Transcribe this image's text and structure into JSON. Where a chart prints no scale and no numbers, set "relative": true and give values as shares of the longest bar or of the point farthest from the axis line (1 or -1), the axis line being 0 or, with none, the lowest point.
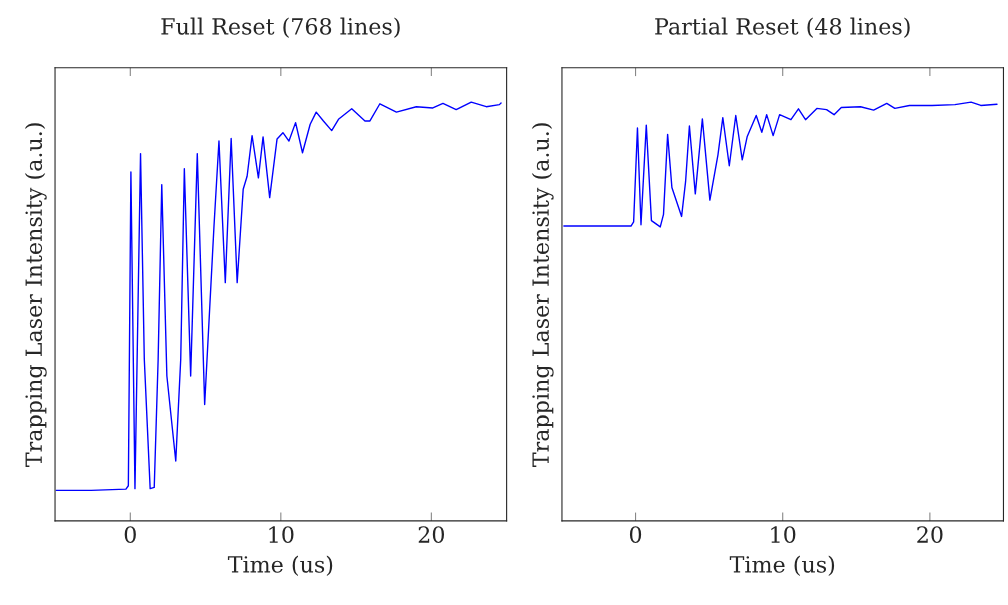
{
  "chart_data": [
    {
      "type": "line",
      "title": "Full Reset (768 lines)",
      "xlabel": "Time (us)",
      "ylabel": "Trapping Laser Intensity (a.u.)",
      "relative": true,
      "tick_labels": "x",
      "xlim": [
        -5,
        25
      ],
      "xticks": [
        0,
        10,
        20
      ],
      "x": [
        -4.92,
        -2.6,
        -0.29,
        -0.13,
        0.04,
        0.31,
        0.68,
        0.93,
        1.32,
        1.59,
        1.85,
        2.09,
        2.43,
        3.02,
        3.35,
        3.59,
        4.01,
        4.45,
        4.94,
        5.56,
        5.89,
        6.31,
        6.7,
        7.1,
        7.5,
        7.76,
        8.09,
        8.51,
        8.82,
        9.26,
        9.75,
        10.14,
        10.54,
        10.98,
        11.44,
        11.95,
        12.35,
        12.83,
        13.38,
        13.83,
        14.71,
        15.59,
        15.92,
        16.58,
        17.68,
        19.0,
        20.1,
        20.77,
        21.65,
        22.65,
        23.65,
        24.52,
        24.63
      ],
      "series": [
        {
          "color": "#0000ff",
          "values": [
            0.073,
            0.073,
            0.076,
            0.084,
            0.833,
            0.077,
            0.877,
            0.386,
            0.077,
            0.08,
            0.386,
            0.803,
            0.346,
            0.143,
            0.386,
            0.841,
            0.346,
            0.877,
            0.278,
            0.704,
            0.907,
            0.569,
            0.913,
            0.569,
            0.792,
            0.823,
            0.92,
            0.819,
            0.917,
            0.772,
            0.912,
            0.927,
            0.907,
            0.951,
            0.879,
            0.947,
            0.976,
            0.955,
            0.932,
            0.959,
            0.984,
            0.955,
            0.955,
            0.996,
            0.976,
            0.989,
            0.986,
            0.997,
            0.982,
            1.0,
            0.989,
            0.994,
            0.998
          ]
        }
      ]
    },
    {
      "type": "line",
      "title": "Partial Reset (48 lines)",
      "xlabel": "Time (us)",
      "ylabel": "Trapping Laser Intensity (a.u.)",
      "relative": true,
      "tick_labels": "x",
      "xlim": [
        -5,
        25
      ],
      "xticks": [
        0,
        10,
        20
      ],
      "x": [
        -4.87,
        -2.56,
        -0.31,
        -0.13,
        0.13,
        0.37,
        0.73,
        1.08,
        1.68,
        1.9,
        2.18,
        2.47,
        3.13,
        3.4,
        3.66,
        4.06,
        4.54,
        5.05,
        5.6,
        5.93,
        6.37,
        6.81,
        7.25,
        7.59,
        8.2,
        8.58,
        8.91,
        9.35,
        9.79,
        10.56,
        11.07,
        11.55,
        12.32,
        12.98,
        13.49,
        13.98,
        15.29,
        16.18,
        17.07,
        17.62,
        18.61,
        20.15,
        21.7,
        22.8,
        23.46,
        24.56
      ],
      "series": [
        {
          "color": "#0000ff",
          "values": [
            0.704,
            0.704,
            0.704,
            0.714,
            0.938,
            0.707,
            0.945,
            0.717,
            0.702,
            0.732,
            0.923,
            0.796,
            0.727,
            0.81,
            0.943,
            0.781,
            0.96,
            0.766,
            0.874,
            0.963,
            0.848,
            0.968,
            0.862,
            0.918,
            0.968,
            0.928,
            0.97,
            0.92,
            0.97,
            0.958,
            0.984,
            0.958,
            0.985,
            0.982,
            0.97,
            0.987,
            0.989,
            0.981,
            0.997,
            0.985,
            0.992,
            0.992,
            0.994,
            1.0,
            0.992,
            0.995
          ]
        }
      ]
    }
  ]
}
